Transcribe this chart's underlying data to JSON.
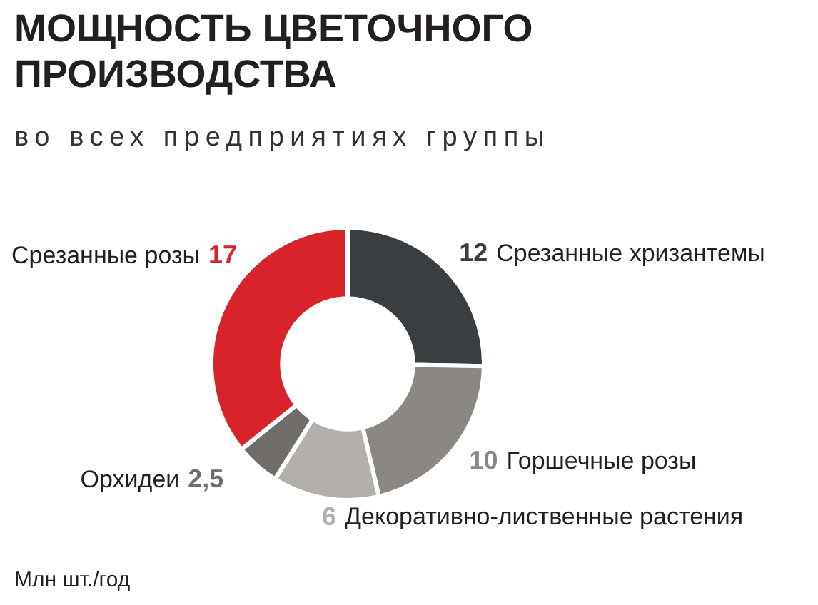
{
  "chart_data": {
    "type": "donut",
    "title": "МОЩНОСТЬ ЦВЕТОЧНОГО ПРОИЗВОДСТВА",
    "subtitle": "во всех предприятиях группы",
    "categories": [
      "Срезанные хризантемы",
      "Горшечные розы",
      "Декоративно-лиственные растения",
      "Орхидеи",
      "Срезанные розы"
    ],
    "values": [
      12,
      10,
      6,
      2.5,
      17
    ],
    "value_labels": [
      "12",
      "10",
      "6",
      "2,5",
      "17"
    ],
    "colors": [
      "#3b3e41",
      "#8b8883",
      "#b3afab",
      "#6f6c69",
      "#d8232a"
    ],
    "legend": false,
    "annotations": [
      "Млн шт./год"
    ]
  }
}
